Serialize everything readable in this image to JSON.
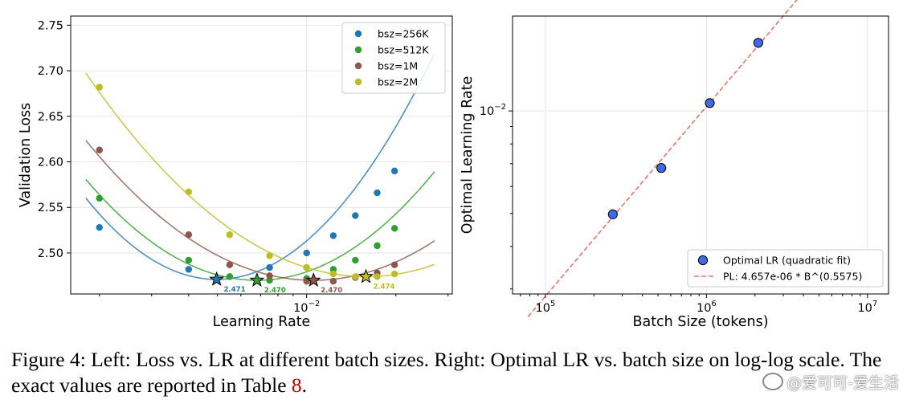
{
  "chart_data": [
    {
      "type": "scatter",
      "title": "",
      "xlabel": "Learning Rate",
      "ylabel": "Validation Loss",
      "xscale": "log",
      "xlim": [
        0.0016,
        0.031
      ],
      "ylim": [
        2.455,
        2.76
      ],
      "yticks": [
        2.5,
        2.55,
        2.6,
        2.65,
        2.7,
        2.75
      ],
      "ytick_labels": [
        "2.50",
        "2.55",
        "2.60",
        "2.65",
        "2.70",
        "2.75"
      ],
      "xtick_label": "10^−2",
      "grid": true,
      "legend_position": "top-right",
      "series": [
        {
          "name": "bsz=256K",
          "color": "#1f77b4",
          "x": [
            0.002,
            0.004,
            0.0055,
            0.0075,
            0.01,
            0.0123,
            0.0146,
            0.0173,
            0.0198
          ],
          "y": [
            2.528,
            2.482,
            2.474,
            2.484,
            2.5,
            2.519,
            2.541,
            2.566,
            2.59
          ],
          "fit": {
            "a": 2.471,
            "x0": 0.00497,
            "k": 0.0865,
            "x_range": [
              0.0018,
              0.027
            ]
          },
          "opt": {
            "x": 0.00497,
            "y": 2.471,
            "label": "2.471"
          }
        },
        {
          "name": "bsz=512K",
          "color": "#2ca02c",
          "x": [
            0.002,
            0.004,
            0.0055,
            0.0075,
            0.01,
            0.0123,
            0.0146,
            0.0173,
            0.0198
          ],
          "y": [
            2.56,
            2.492,
            2.474,
            2.47,
            2.472,
            2.482,
            2.492,
            2.508,
            2.527
          ],
          "fit": {
            "a": 2.47,
            "x0": 0.0068,
            "k": 0.0627,
            "x_range": [
              0.0018,
              0.027
            ]
          },
          "opt": {
            "x": 0.0068,
            "y": 2.47,
            "label": "2.470"
          }
        },
        {
          "name": "bsz=1M",
          "color": "#8c564b",
          "x": [
            0.002,
            0.004,
            0.0055,
            0.0075,
            0.01,
            0.0123,
            0.0146,
            0.0173,
            0.0198
          ],
          "y": [
            2.613,
            2.52,
            2.487,
            2.475,
            2.469,
            2.469,
            2.473,
            2.478,
            2.487
          ],
          "fit": {
            "a": 2.47,
            "x0": 0.01055,
            "k": 0.0491,
            "x_range": [
              0.0018,
              0.027
            ]
          },
          "opt": {
            "x": 0.01055,
            "y": 2.47,
            "label": "2.470"
          }
        },
        {
          "name": "bsz=2M",
          "color": "#bcbd22",
          "x": [
            0.002,
            0.004,
            0.0055,
            0.0075,
            0.01,
            0.0123,
            0.0146,
            0.0173,
            0.0198
          ],
          "y": [
            2.682,
            2.567,
            2.52,
            2.497,
            2.484,
            2.477,
            2.474,
            2.474,
            2.477
          ],
          "fit": {
            "a": 2.474,
            "x0": 0.01585,
            "k": 0.0472,
            "x_range": [
              0.0018,
              0.027
            ]
          },
          "opt": {
            "x": 0.01585,
            "y": 2.474,
            "label": "2.474"
          }
        }
      ]
    },
    {
      "type": "scatter",
      "title": "",
      "xlabel": "Batch Size (tokens)",
      "ylabel": "Optimal Learning Rate",
      "xscale": "log",
      "yscale": "log",
      "xlim": [
        62500,
        13500000
      ],
      "ylim": [
        0.0029,
        0.019
      ],
      "xticks": [
        100000,
        1000000,
        10000000
      ],
      "xtick_labels": [
        "10^5",
        "10^6",
        "10^7"
      ],
      "ytick_label": "10^−2",
      "grid": true,
      "legend_position": "bottom-right",
      "points": {
        "name": "Optimal LR (quadratic fit)",
        "color": "#4169e1",
        "x": [
          262144,
          524288,
          1048576,
          2097152
        ],
        "y": [
          0.00497,
          0.0068,
          0.01055,
          0.01585
        ]
      },
      "fit_line": {
        "name": "PL: 4.657e-06 * B^(0.5575)",
        "color": "#e8776a",
        "coef": 4.657e-06,
        "exponent": 0.5575,
        "x_range": [
          78000,
          10600000
        ]
      }
    }
  ],
  "caption": {
    "text_before": "Figure 4: Left: Loss vs. LR at different batch sizes. Right: Optimal LR vs. batch size on log-log scale. The exact values are reported in Table ",
    "ref": "8",
    "text_after": "."
  },
  "watermark": "@爱可可-爱生活"
}
